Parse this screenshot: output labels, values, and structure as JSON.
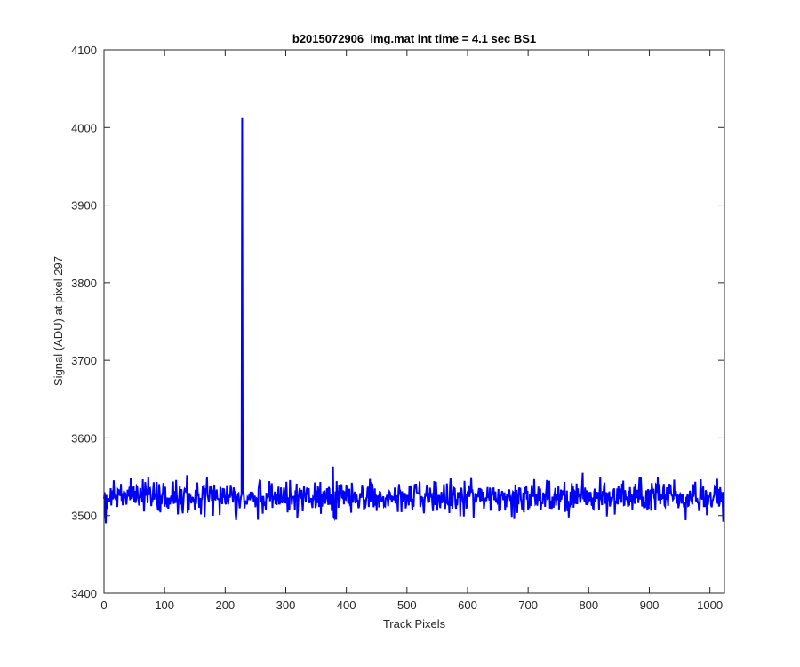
{
  "chart_data": {
    "type": "line",
    "title": "b2015072906_img.mat int time = 4.1 sec   BS1",
    "xlabel": "Track Pixels",
    "ylabel": "Signal (ADU) at pixel 297",
    "xlim": [
      0,
      1024
    ],
    "ylim": [
      3400,
      4100
    ],
    "xticks": [
      0,
      100,
      200,
      300,
      400,
      500,
      600,
      700,
      800,
      900,
      1000
    ],
    "yticks": [
      3400,
      3500,
      3600,
      3700,
      3800,
      3900,
      4000,
      4100
    ],
    "grid": false,
    "line_color": "#0000ff",
    "baseline_mean": 3524,
    "noise_sigma": 10,
    "points": 1024,
    "notable_points": [
      {
        "x": 3,
        "y": 3490
      },
      {
        "x": 44,
        "y": 3548
      },
      {
        "x": 137,
        "y": 3552
      },
      {
        "x": 170,
        "y": 3550
      },
      {
        "x": 227,
        "y": 3527
      },
      {
        "x": 228,
        "y": 4012
      },
      {
        "x": 229,
        "y": 3527
      },
      {
        "x": 378,
        "y": 3563
      },
      {
        "x": 380,
        "y": 3497
      },
      {
        "x": 790,
        "y": 3555
      },
      {
        "x": 935,
        "y": 3540
      },
      {
        "x": 960,
        "y": 3494
      },
      {
        "x": 1022,
        "y": 3492
      }
    ]
  }
}
